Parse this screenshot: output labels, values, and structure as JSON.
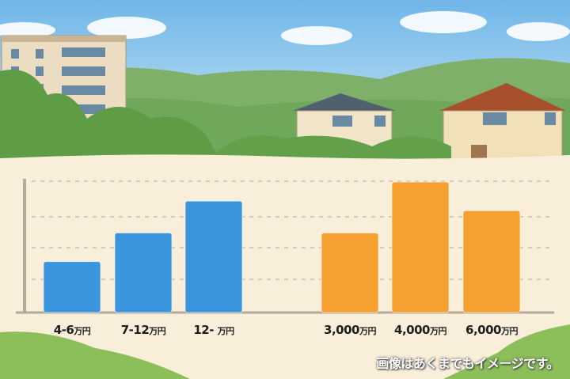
{
  "chart_data": {
    "type": "bar",
    "groups": [
      {
        "color": "#3a95dc",
        "categories": [
          {
            "num": "4-6",
            "unit": "万円"
          },
          {
            "num": "7-12",
            "unit": "万円"
          },
          {
            "num": "12- ",
            "unit": "万円"
          }
        ],
        "values": [
          1.6,
          2.5,
          3.5
        ]
      },
      {
        "color": "#f6a032",
        "categories": [
          {
            "num": "3,000",
            "unit": "万円"
          },
          {
            "num": "4,000",
            "unit": "万円"
          },
          {
            "num": "6,000",
            "unit": "万円"
          }
        ],
        "values": [
          2.5,
          4.1,
          3.2
        ]
      }
    ],
    "ylim": [
      0,
      4.2
    ],
    "grid": true,
    "title": "",
    "xlabel": "",
    "ylabel": ""
  },
  "caption": "画像はあくまでもイメージです。",
  "colors": {
    "sky": "#8cc8ee",
    "hills": "#6fa85a",
    "paper": "#f8eeda",
    "axis": "#b5aa9a"
  }
}
